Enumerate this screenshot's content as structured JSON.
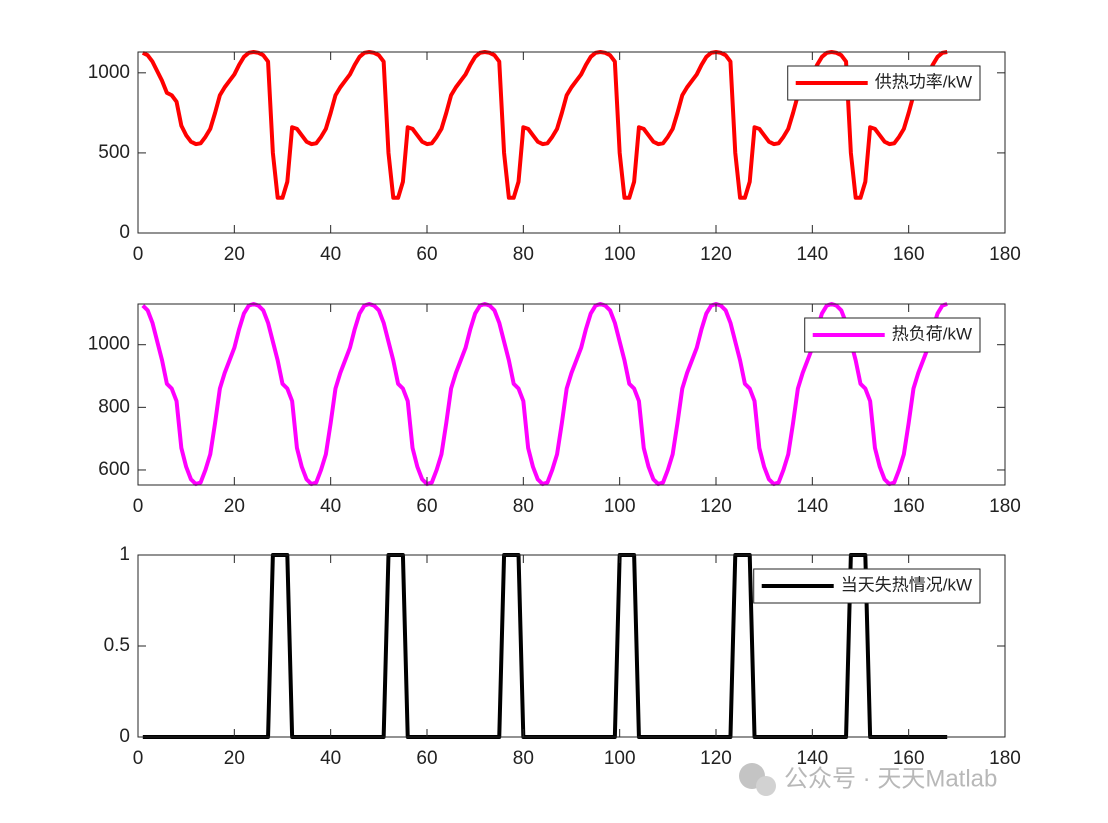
{
  "chart_data": [
    {
      "type": "line",
      "legend": "northeast",
      "xlim": [
        0,
        180
      ],
      "ylim": [
        0,
        1130
      ],
      "xticks": [
        0,
        20,
        40,
        60,
        80,
        100,
        120,
        140,
        160,
        180
      ],
      "yticks": [
        0,
        500,
        1000
      ],
      "x": [
        1,
        2,
        3,
        4,
        5,
        6,
        7,
        8,
        9,
        10,
        11,
        12,
        13,
        14,
        15,
        16,
        17,
        18,
        19,
        20,
        21,
        22,
        23,
        24,
        25,
        26,
        27,
        28,
        29,
        30,
        31,
        32,
        33,
        34,
        35,
        36,
        37,
        38,
        39,
        40,
        41,
        42,
        43,
        44,
        45,
        46,
        47,
        48,
        49,
        50,
        51,
        52,
        53,
        54,
        55,
        56,
        57,
        58,
        59,
        60,
        61,
        62,
        63,
        64,
        65,
        66,
        67,
        68,
        69,
        70,
        71,
        72,
        73,
        74,
        75,
        76,
        77,
        78,
        79,
        80,
        81,
        82,
        83,
        84,
        85,
        86,
        87,
        88,
        89,
        90,
        91,
        92,
        93,
        94,
        95,
        96,
        97,
        98,
        99,
        100,
        101,
        102,
        103,
        104,
        105,
        106,
        107,
        108,
        109,
        110,
        111,
        112,
        113,
        114,
        115,
        116,
        117,
        118,
        119,
        120,
        121,
        122,
        123,
        124,
        125,
        126,
        127,
        128,
        129,
        130,
        131,
        132,
        133,
        134,
        135,
        136,
        137,
        138,
        139,
        140,
        141,
        142,
        143,
        144,
        145,
        146,
        147,
        148,
        149,
        150,
        151,
        152,
        153,
        154,
        155,
        156,
        157,
        158,
        159,
        160,
        161,
        162,
        163,
        164,
        165,
        166,
        167,
        168
      ],
      "series": [
        {
          "name": "供热功率/kW",
          "color": "#ff0000",
          "values": [
            1125,
            1110,
            1070,
            1010,
            950,
            875,
            860,
            820,
            670,
            610,
            570,
            555,
            560,
            600,
            650,
            750,
            860,
            910,
            950,
            990,
            1050,
            1100,
            1125,
            1130,
            1125,
            1110,
            1070,
            500,
            220,
            220,
            320,
            660,
            650,
            610,
            570,
            555,
            560,
            600,
            650,
            750,
            860,
            910,
            950,
            990,
            1050,
            1100,
            1125,
            1130,
            1125,
            1110,
            1070,
            500,
            220,
            220,
            320,
            660,
            650,
            610,
            570,
            555,
            560,
            600,
            650,
            750,
            860,
            910,
            950,
            990,
            1050,
            1100,
            1125,
            1130,
            1125,
            1110,
            1070,
            500,
            220,
            220,
            320,
            660,
            650,
            610,
            570,
            555,
            560,
            600,
            650,
            750,
            860,
            910,
            950,
            990,
            1050,
            1100,
            1125,
            1130,
            1125,
            1110,
            1070,
            500,
            220,
            220,
            320,
            660,
            650,
            610,
            570,
            555,
            560,
            600,
            650,
            750,
            860,
            910,
            950,
            990,
            1050,
            1100,
            1125,
            1130,
            1125,
            1110,
            1070,
            500,
            220,
            220,
            320,
            660,
            650,
            610,
            570,
            555,
            560,
            600,
            650,
            750,
            860,
            910,
            950,
            990,
            1050,
            1100,
            1125,
            1130,
            1125,
            1110,
            1070,
            500,
            220,
            220,
            320,
            660,
            650,
            610,
            570,
            555,
            560,
            600,
            650,
            750,
            860,
            910,
            950,
            990,
            1050,
            1100,
            1125,
            1130
          ]
        }
      ]
    },
    {
      "type": "line",
      "legend": "northeast",
      "xlim": [
        0,
        180
      ],
      "ylim": [
        552,
        1130
      ],
      "xticks": [
        0,
        20,
        40,
        60,
        80,
        100,
        120,
        140,
        160,
        180
      ],
      "yticks": [
        600,
        800,
        1000
      ],
      "x": [
        1,
        2,
        3,
        4,
        5,
        6,
        7,
        8,
        9,
        10,
        11,
        12,
        13,
        14,
        15,
        16,
        17,
        18,
        19,
        20,
        21,
        22,
        23,
        24,
        25,
        26,
        27,
        28,
        29,
        30,
        31,
        32,
        33,
        34,
        35,
        36,
        37,
        38,
        39,
        40,
        41,
        42,
        43,
        44,
        45,
        46,
        47,
        48,
        49,
        50,
        51,
        52,
        53,
        54,
        55,
        56,
        57,
        58,
        59,
        60,
        61,
        62,
        63,
        64,
        65,
        66,
        67,
        68,
        69,
        70,
        71,
        72,
        73,
        74,
        75,
        76,
        77,
        78,
        79,
        80,
        81,
        82,
        83,
        84,
        85,
        86,
        87,
        88,
        89,
        90,
        91,
        92,
        93,
        94,
        95,
        96,
        97,
        98,
        99,
        100,
        101,
        102,
        103,
        104,
        105,
        106,
        107,
        108,
        109,
        110,
        111,
        112,
        113,
        114,
        115,
        116,
        117,
        118,
        119,
        120,
        121,
        122,
        123,
        124,
        125,
        126,
        127,
        128,
        129,
        130,
        131,
        132,
        133,
        134,
        135,
        136,
        137,
        138,
        139,
        140,
        141,
        142,
        143,
        144,
        145,
        146,
        147,
        148,
        149,
        150,
        151,
        152,
        153,
        154,
        155,
        156,
        157,
        158,
        159,
        160,
        161,
        162,
        163,
        164,
        165,
        166,
        167,
        168
      ],
      "series": [
        {
          "name": "热负荷/kW",
          "color": "#ff00ff",
          "values": [
            1125,
            1110,
            1070,
            1010,
            950,
            875,
            860,
            820,
            670,
            610,
            570,
            555,
            560,
            600,
            650,
            750,
            860,
            910,
            950,
            990,
            1050,
            1100,
            1125,
            1130,
            1125,
            1110,
            1070,
            1010,
            950,
            875,
            860,
            820,
            670,
            610,
            570,
            555,
            560,
            600,
            650,
            750,
            860,
            910,
            950,
            990,
            1050,
            1100,
            1125,
            1130,
            1125,
            1110,
            1070,
            1010,
            950,
            875,
            860,
            820,
            670,
            610,
            570,
            555,
            560,
            600,
            650,
            750,
            860,
            910,
            950,
            990,
            1050,
            1100,
            1125,
            1130,
            1125,
            1110,
            1070,
            1010,
            950,
            875,
            860,
            820,
            670,
            610,
            570,
            555,
            560,
            600,
            650,
            750,
            860,
            910,
            950,
            990,
            1050,
            1100,
            1125,
            1130,
            1125,
            1110,
            1070,
            1010,
            950,
            875,
            860,
            820,
            670,
            610,
            570,
            555,
            560,
            600,
            650,
            750,
            860,
            910,
            950,
            990,
            1050,
            1100,
            1125,
            1130,
            1125,
            1110,
            1070,
            1010,
            950,
            875,
            860,
            820,
            670,
            610,
            570,
            555,
            560,
            600,
            650,
            750,
            860,
            910,
            950,
            990,
            1050,
            1100,
            1125,
            1130,
            1125,
            1110,
            1070,
            1010,
            950,
            875,
            860,
            820,
            670,
            610,
            570,
            555,
            560,
            600,
            650,
            750,
            860,
            910,
            950,
            990,
            1050,
            1100,
            1125,
            1130
          ]
        }
      ]
    },
    {
      "type": "line",
      "legend": "northeast",
      "xlim": [
        0,
        180
      ],
      "ylim": [
        0,
        1
      ],
      "xticks": [
        0,
        20,
        40,
        60,
        80,
        100,
        120,
        140,
        160,
        180
      ],
      "yticks": [
        0,
        0.5,
        1
      ],
      "x": [
        1,
        2,
        3,
        4,
        5,
        6,
        7,
        8,
        9,
        10,
        11,
        12,
        13,
        14,
        15,
        16,
        17,
        18,
        19,
        20,
        21,
        22,
        23,
        24,
        25,
        26,
        27,
        28,
        29,
        30,
        31,
        32,
        33,
        34,
        35,
        36,
        37,
        38,
        39,
        40,
        41,
        42,
        43,
        44,
        45,
        46,
        47,
        48,
        49,
        50,
        51,
        52,
        53,
        54,
        55,
        56,
        57,
        58,
        59,
        60,
        61,
        62,
        63,
        64,
        65,
        66,
        67,
        68,
        69,
        70,
        71,
        72,
        73,
        74,
        75,
        76,
        77,
        78,
        79,
        80,
        81,
        82,
        83,
        84,
        85,
        86,
        87,
        88,
        89,
        90,
        91,
        92,
        93,
        94,
        95,
        96,
        97,
        98,
        99,
        100,
        101,
        102,
        103,
        104,
        105,
        106,
        107,
        108,
        109,
        110,
        111,
        112,
        113,
        114,
        115,
        116,
        117,
        118,
        119,
        120,
        121,
        122,
        123,
        124,
        125,
        126,
        127,
        128,
        129,
        130,
        131,
        132,
        133,
        134,
        135,
        136,
        137,
        138,
        139,
        140,
        141,
        142,
        143,
        144,
        145,
        146,
        147,
        148,
        149,
        150,
        151,
        152,
        153,
        154,
        155,
        156,
        157,
        158,
        159,
        160,
        161,
        162,
        163,
        164,
        165,
        166,
        167,
        168
      ],
      "series": [
        {
          "name": "当天失热情况/kW",
          "color": "#000000",
          "values": [
            0,
            0,
            0,
            0,
            0,
            0,
            0,
            0,
            0,
            0,
            0,
            0,
            0,
            0,
            0,
            0,
            0,
            0,
            0,
            0,
            0,
            0,
            0,
            0,
            0,
            0,
            0,
            1,
            1,
            1,
            1,
            0,
            0,
            0,
            0,
            0,
            0,
            0,
            0,
            0,
            0,
            0,
            0,
            0,
            0,
            0,
            0,
            0,
            0,
            0,
            0,
            1,
            1,
            1,
            1,
            0,
            0,
            0,
            0,
            0,
            0,
            0,
            0,
            0,
            0,
            0,
            0,
            0,
            0,
            0,
            0,
            0,
            0,
            0,
            0,
            1,
            1,
            1,
            1,
            0,
            0,
            0,
            0,
            0,
            0,
            0,
            0,
            0,
            0,
            0,
            0,
            0,
            0,
            0,
            0,
            0,
            0,
            0,
            0,
            1,
            1,
            1,
            1,
            0,
            0,
            0,
            0,
            0,
            0,
            0,
            0,
            0,
            0,
            0,
            0,
            0,
            0,
            0,
            0,
            0,
            0,
            0,
            0,
            1,
            1,
            1,
            1,
            0,
            0,
            0,
            0,
            0,
            0,
            0,
            0,
            0,
            0,
            0,
            0,
            0,
            0,
            0,
            0,
            0,
            0,
            0,
            0,
            1,
            1,
            1,
            1,
            0,
            0,
            0,
            0,
            0,
            0,
            0,
            0,
            0,
            0,
            0,
            0,
            0,
            0,
            0,
            0,
            0
          ]
        }
      ]
    }
  ],
  "watermark": "公众号 · 天天Matlab"
}
